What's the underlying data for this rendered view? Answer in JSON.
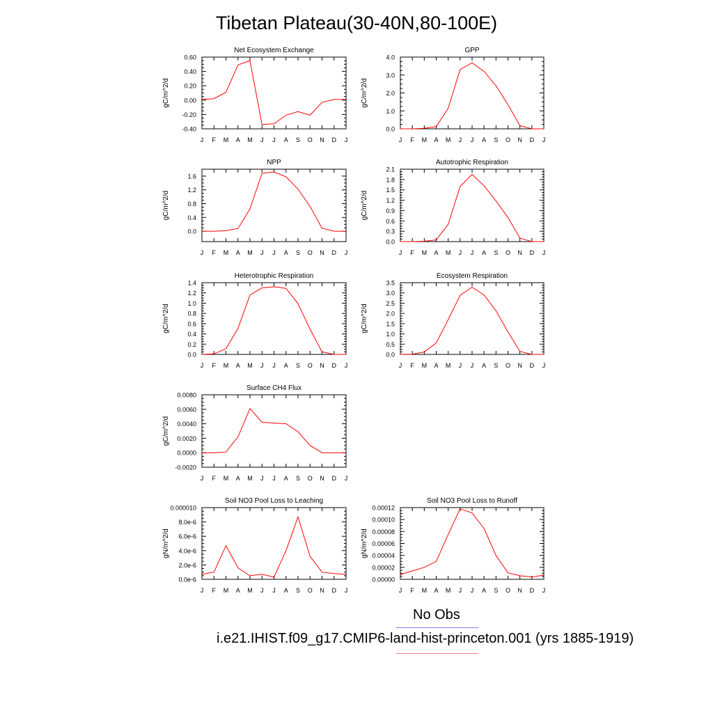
{
  "title": "Tibetan Plateau(30-40N,80-100E)",
  "months": [
    "J",
    "F",
    "M",
    "A",
    "M",
    "J",
    "J",
    "A",
    "S",
    "O",
    "N",
    "D",
    "J"
  ],
  "colors": {
    "model": "#ff0000",
    "obs": "#7b7bff"
  },
  "legend": {
    "obs_label": "No Obs",
    "model_label": "i.e21.IHIST.f09_g17.CMIP6-land-hist-princeton.001 (yrs 1885-1919)"
  },
  "chart_data": [
    {
      "type": "line",
      "title": "Net Ecosystem Exchange",
      "ylabel": "gC/m^2/d",
      "ylim": [
        -0.4,
        0.6
      ],
      "yticks": [
        "-0.40",
        "-0.20",
        "0.00",
        "0.20",
        "0.40",
        "0.60"
      ],
      "ytick_values": [
        -0.4,
        -0.2,
        0,
        0.2,
        0.4,
        0.6
      ],
      "series": [
        {
          "values": [
            0.01,
            0.02,
            0.11,
            0.49,
            0.55,
            -0.34,
            -0.33,
            -0.21,
            -0.16,
            -0.21,
            -0.03,
            0.01,
            0.01
          ]
        }
      ]
    },
    {
      "type": "line",
      "title": "GPP",
      "ylabel": "gC/m^2/d",
      "ylim": [
        0,
        4.0
      ],
      "yticks": [
        "0.0",
        "1.0",
        "2.0",
        "3.0",
        "4.0"
      ],
      "ytick_values": [
        0,
        1,
        2,
        3,
        4
      ],
      "series": [
        {
          "values": [
            0.0,
            0.0,
            0.03,
            0.12,
            1.15,
            3.3,
            3.68,
            3.2,
            2.4,
            1.35,
            0.18,
            0.0,
            0.0
          ]
        }
      ]
    },
    {
      "type": "line",
      "title": "NPP",
      "ylabel": "gC/m^2/d",
      "ylim": [
        -0.3,
        1.8
      ],
      "yticks": [
        "0.0",
        "0.4",
        "0.8",
        "1.2",
        "1.6"
      ],
      "ytick_values": [
        0,
        0.4,
        0.8,
        1.2,
        1.6
      ],
      "series": [
        {
          "values": [
            0.0,
            0.0,
            0.02,
            0.08,
            0.65,
            1.68,
            1.72,
            1.58,
            1.22,
            0.72,
            0.09,
            0.0,
            0.0
          ]
        }
      ]
    },
    {
      "type": "line",
      "title": "Autotrophic Respiration",
      "ylabel": "gC/m^2/d",
      "ylim": [
        0,
        2.1
      ],
      "yticks": [
        "0.0",
        "0.3",
        "0.6",
        "0.9",
        "1.2",
        "1.5",
        "1.8",
        "2.1"
      ],
      "ytick_values": [
        0,
        0.3,
        0.6,
        0.9,
        1.2,
        1.5,
        1.8,
        2.1
      ],
      "series": [
        {
          "values": [
            0.0,
            0.0,
            0.01,
            0.05,
            0.5,
            1.6,
            1.95,
            1.62,
            1.18,
            0.7,
            0.1,
            0.0,
            0.0
          ]
        }
      ]
    },
    {
      "type": "line",
      "title": "Heterotrophic Respiration",
      "ylabel": "gC/m^2/d",
      "ylim": [
        0,
        1.4
      ],
      "yticks": [
        "0.0",
        "0.2",
        "0.4",
        "0.6",
        "0.8",
        "1.0",
        "1.2",
        "1.4"
      ],
      "ytick_values": [
        0,
        0.2,
        0.4,
        0.6,
        0.8,
        1.0,
        1.2,
        1.4
      ],
      "series": [
        {
          "values": [
            0.0,
            0.01,
            0.11,
            0.51,
            1.16,
            1.3,
            1.32,
            1.29,
            0.99,
            0.49,
            0.05,
            0.0,
            0.0
          ]
        }
      ]
    },
    {
      "type": "line",
      "title": "Ecosystem Respiration",
      "ylabel": "gC/m^2/d",
      "ylim": [
        0,
        3.5
      ],
      "yticks": [
        "0.0",
        "0.5",
        "1.0",
        "1.5",
        "2.0",
        "2.5",
        "3.0",
        "3.5"
      ],
      "ytick_values": [
        0,
        0.5,
        1,
        1.5,
        2,
        2.5,
        3,
        3.5
      ],
      "series": [
        {
          "values": [
            0.0,
            0.01,
            0.12,
            0.56,
            1.7,
            2.88,
            3.28,
            2.9,
            2.13,
            1.1,
            0.15,
            0.0,
            0.0
          ]
        }
      ]
    },
    {
      "type": "line",
      "title": "Surface CH4 Flux",
      "ylabel": "gC/m^2/d",
      "ylim": [
        -0.002,
        0.008
      ],
      "yticks": [
        "-0.0020",
        "0.0000",
        "0.0020",
        "0.0040",
        "0.0060",
        "0.0080"
      ],
      "ytick_values": [
        -0.002,
        0,
        0.002,
        0.004,
        0.006,
        0.008
      ],
      "series": [
        {
          "values": [
            0.0,
            0.0,
            0.0001,
            0.0022,
            0.0061,
            0.0042,
            0.0041,
            0.004,
            0.0029,
            0.001,
            0.0,
            0.0,
            0.0
          ]
        }
      ]
    },
    {
      "type": "line",
      "title": "Soil NO3 Pool Loss to Leaching",
      "ylabel": "gN/m^2/d",
      "ylim": [
        0,
        1e-05
      ],
      "yticks": [
        "0.0e-6",
        "2.0e-6",
        "4.0e-6",
        "6.0e-6",
        "8.0e-6",
        "0.000010"
      ],
      "ytick_values": [
        0,
        2e-06,
        4e-06,
        6e-06,
        8e-06,
        1e-05
      ],
      "series": [
        {
          "values": [
            7e-07,
            1e-06,
            4.7e-06,
            1.6e-06,
            5e-07,
            7e-07,
            3e-07,
            4e-06,
            8.7e-06,
            3.2e-06,
            1e-06,
            8e-07,
            7e-07
          ]
        }
      ]
    },
    {
      "type": "line",
      "title": "Soil NO3 Pool Loss to Runoff",
      "ylabel": "gN/m^2/d",
      "ylim": [
        0,
        0.00012
      ],
      "yticks": [
        "0.00000",
        "0.00002",
        "0.00004",
        "0.00006",
        "0.00008",
        "0.00010",
        "0.00012"
      ],
      "ytick_values": [
        0,
        2e-05,
        4e-05,
        6e-05,
        8e-05,
        0.0001,
        0.00012
      ],
      "series": [
        {
          "values": [
            8e-06,
            1.4e-05,
            2e-05,
            3e-05,
            7.5e-05,
            0.000118,
            0.000111,
            8.5e-05,
            4e-05,
            1.1e-05,
            6e-06,
            4e-06,
            7e-06
          ]
        }
      ]
    }
  ]
}
